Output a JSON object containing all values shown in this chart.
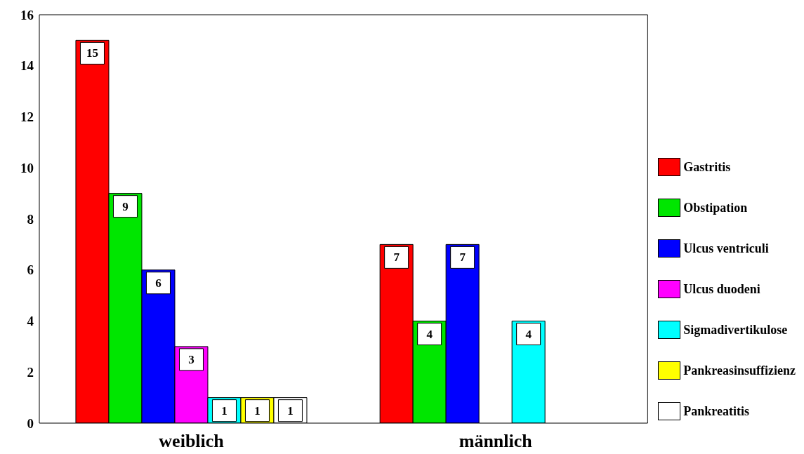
{
  "chart_data": {
    "type": "bar",
    "categories": [
      "weiblich",
      "männlich"
    ],
    "series": [
      {
        "name": "Gastritis",
        "color": "#ff0000",
        "values": [
          15,
          7
        ],
        "value_labels": [
          "15",
          "7"
        ]
      },
      {
        "name": "Obstipation",
        "color": "#00e600",
        "values": [
          9,
          4
        ],
        "value_labels": [
          "9",
          "4"
        ]
      },
      {
        "name": "Ulcus ventriculi",
        "color": "#0000ff",
        "values": [
          6,
          7
        ],
        "value_labels": [
          "6",
          "7"
        ]
      },
      {
        "name": "Ulcus duodeni",
        "color": "#ff00ff",
        "values": [
          3,
          0
        ],
        "value_labels": [
          "3",
          null
        ]
      },
      {
        "name": "Sigmadivertikulose",
        "color": "#00ffff",
        "values": [
          1,
          4
        ],
        "value_labels": [
          "1",
          "4"
        ]
      },
      {
        "name": "Pankreasinsuffizienz",
        "color": "#ffff00",
        "values": [
          1,
          0
        ],
        "value_labels": [
          "1",
          null
        ]
      },
      {
        "name": "Pankreatitis",
        "color": "#ffffff",
        "values": [
          1,
          0
        ],
        "value_labels": [
          "1",
          null
        ]
      }
    ],
    "ylim": [
      0,
      16
    ],
    "yticks": [
      0,
      2,
      4,
      6,
      8,
      10,
      12,
      14,
      16
    ],
    "grid": false,
    "legend": "right"
  }
}
